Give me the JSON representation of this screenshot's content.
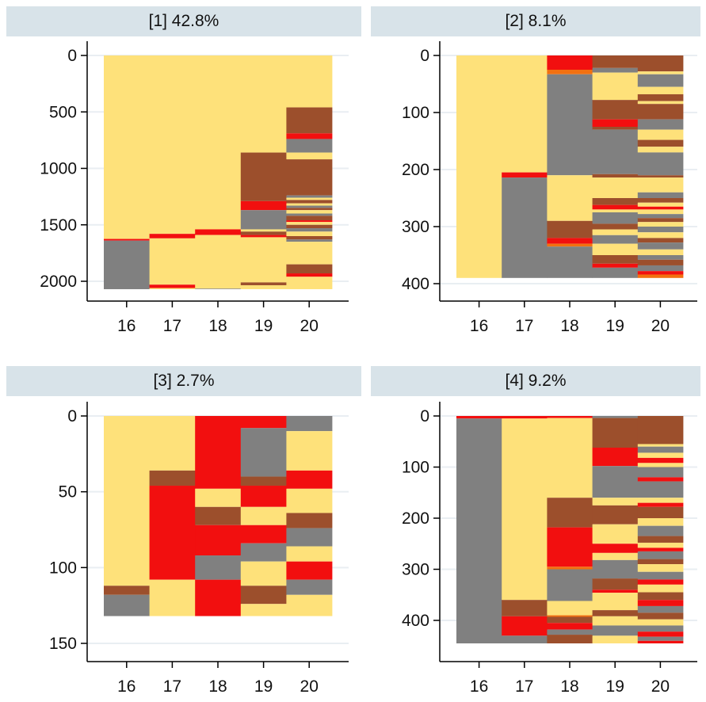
{
  "colors": {
    "yellow": "#fee17a",
    "grey": "#808080",
    "red": "#f20f0f",
    "brown": "#9c4f2c",
    "orange": "#f27010",
    "grid": "#e9eef2",
    "title_bg": "#d8e3e9"
  },
  "chart_data": [
    {
      "type": "sequence_index_plot",
      "title": "[1] 42.8%",
      "categories": [
        "16",
        "17",
        "18",
        "19",
        "20"
      ],
      "n": 2070,
      "ylim": [
        2150,
        0
      ],
      "yticks": [
        0,
        500,
        1000,
        1500,
        2000
      ],
      "grid": true,
      "columns": [
        [
          [
            "yellow",
            0,
            1625
          ],
          [
            "red",
            1625,
            1640
          ],
          [
            "grey",
            1640,
            2070
          ]
        ],
        [
          [
            "yellow",
            0,
            1580
          ],
          [
            "red",
            1580,
            1620
          ],
          [
            "yellow",
            1620,
            2030
          ],
          [
            "red",
            2030,
            2060
          ],
          [
            "yellow",
            2060,
            2070
          ]
        ],
        [
          [
            "yellow",
            0,
            1540
          ],
          [
            "red",
            1540,
            1590
          ],
          [
            "yellow",
            1590,
            2065
          ],
          [
            "grey",
            2065,
            2070
          ]
        ],
        [
          [
            "yellow",
            0,
            860
          ],
          [
            "brown",
            860,
            1290
          ],
          [
            "red",
            1290,
            1370
          ],
          [
            "grey",
            1370,
            1540
          ],
          [
            "yellow",
            1540,
            1560
          ],
          [
            "brown",
            1560,
            1590
          ],
          [
            "red",
            1590,
            1610
          ],
          [
            "yellow",
            1610,
            2010
          ],
          [
            "brown",
            2010,
            2035
          ],
          [
            "yellow",
            2035,
            2070
          ]
        ],
        [
          [
            "yellow",
            0,
            460
          ],
          [
            "brown",
            460,
            690
          ],
          [
            "red",
            690,
            740
          ],
          [
            "grey",
            740,
            860
          ],
          [
            "yellow",
            860,
            920
          ],
          [
            "brown",
            920,
            1240
          ],
          [
            "grey",
            1240,
            1260
          ],
          [
            "yellow",
            1260,
            1280
          ],
          [
            "brown",
            1280,
            1310
          ],
          [
            "yellow",
            1310,
            1330
          ],
          [
            "grey",
            1330,
            1350
          ],
          [
            "brown",
            1350,
            1370
          ],
          [
            "yellow",
            1370,
            1400
          ],
          [
            "grey",
            1400,
            1420
          ],
          [
            "brown",
            1420,
            1460
          ],
          [
            "red",
            1460,
            1475
          ],
          [
            "yellow",
            1475,
            1500
          ],
          [
            "brown",
            1500,
            1530
          ],
          [
            "grey",
            1530,
            1560
          ],
          [
            "yellow",
            1560,
            1600
          ],
          [
            "brown",
            1600,
            1630
          ],
          [
            "grey",
            1630,
            1650
          ],
          [
            "yellow",
            1650,
            1850
          ],
          [
            "brown",
            1850,
            1930
          ],
          [
            "red",
            1930,
            1960
          ],
          [
            "yellow",
            1960,
            2070
          ]
        ]
      ]
    },
    {
      "type": "sequence_index_plot",
      "title": "[2] 8.1%",
      "categories": [
        "16",
        "17",
        "18",
        "19",
        "20"
      ],
      "n": 390,
      "ylim": [
        410,
        0
      ],
      "yticks": [
        0,
        100,
        200,
        300,
        400
      ],
      "grid": true,
      "columns": [
        [
          [
            "yellow",
            0,
            390
          ]
        ],
        [
          [
            "yellow",
            0,
            205
          ],
          [
            "red",
            205,
            214
          ],
          [
            "grey",
            214,
            390
          ]
        ],
        [
          [
            "red",
            0,
            25
          ],
          [
            "orange",
            25,
            33
          ],
          [
            "grey",
            33,
            210
          ],
          [
            "yellow",
            210,
            290
          ],
          [
            "brown",
            290,
            320
          ],
          [
            "red",
            320,
            330
          ],
          [
            "orange",
            330,
            335
          ],
          [
            "grey",
            335,
            390
          ]
        ],
        [
          [
            "brown",
            0,
            22
          ],
          [
            "grey",
            22,
            30
          ],
          [
            "yellow",
            30,
            78
          ],
          [
            "brown",
            78,
            112
          ],
          [
            "red",
            112,
            125
          ],
          [
            "brown",
            125,
            130
          ],
          [
            "grey",
            130,
            208
          ],
          [
            "brown",
            208,
            214
          ],
          [
            "yellow",
            214,
            250
          ],
          [
            "brown",
            250,
            262
          ],
          [
            "red",
            262,
            270
          ],
          [
            "yellow",
            270,
            275
          ],
          [
            "grey",
            275,
            295
          ],
          [
            "brown",
            295,
            305
          ],
          [
            "yellow",
            305,
            315
          ],
          [
            "grey",
            315,
            330
          ],
          [
            "yellow",
            330,
            350
          ],
          [
            "brown",
            350,
            365
          ],
          [
            "red",
            365,
            372
          ],
          [
            "grey",
            372,
            390
          ]
        ],
        [
          [
            "brown",
            0,
            28
          ],
          [
            "yellow",
            28,
            33
          ],
          [
            "grey",
            33,
            55
          ],
          [
            "yellow",
            55,
            68
          ],
          [
            "brown",
            68,
            80
          ],
          [
            "yellow",
            80,
            85
          ],
          [
            "brown",
            85,
            112
          ],
          [
            "grey",
            112,
            130
          ],
          [
            "yellow",
            130,
            148
          ],
          [
            "brown",
            148,
            160
          ],
          [
            "yellow",
            160,
            170
          ],
          [
            "grey",
            170,
            210
          ],
          [
            "brown",
            210,
            214
          ],
          [
            "yellow",
            214,
            240
          ],
          [
            "grey",
            240,
            250
          ],
          [
            "brown",
            250,
            258
          ],
          [
            "yellow",
            258,
            265
          ],
          [
            "red",
            265,
            270
          ],
          [
            "yellow",
            270,
            278
          ],
          [
            "grey",
            278,
            285
          ],
          [
            "brown",
            285,
            292
          ],
          [
            "yellow",
            292,
            300
          ],
          [
            "grey",
            300,
            310
          ],
          [
            "yellow",
            310,
            320
          ],
          [
            "brown",
            320,
            328
          ],
          [
            "grey",
            328,
            340
          ],
          [
            "yellow",
            340,
            350
          ],
          [
            "grey",
            350,
            358
          ],
          [
            "brown",
            358,
            368
          ],
          [
            "grey",
            368,
            378
          ],
          [
            "red",
            378,
            384
          ],
          [
            "orange",
            384,
            390
          ]
        ]
      ]
    },
    {
      "type": "sequence_index_plot",
      "title": "[3] 2.7%",
      "categories": [
        "16",
        "17",
        "18",
        "19",
        "20"
      ],
      "n": 132,
      "ylim": [
        155,
        0
      ],
      "yticks": [
        0,
        50,
        100,
        150
      ],
      "grid": true,
      "columns": [
        [
          [
            "yellow",
            0,
            112
          ],
          [
            "brown",
            112,
            118
          ],
          [
            "grey",
            118,
            132
          ]
        ],
        [
          [
            "yellow",
            0,
            36
          ],
          [
            "brown",
            36,
            46
          ],
          [
            "red",
            46,
            108
          ],
          [
            "yellow",
            108,
            132
          ]
        ],
        [
          [
            "red",
            0,
            48
          ],
          [
            "yellow",
            48,
            60
          ],
          [
            "brown",
            60,
            72
          ],
          [
            "red",
            72,
            92
          ],
          [
            "grey",
            92,
            108
          ],
          [
            "red",
            108,
            132
          ]
        ],
        [
          [
            "red",
            0,
            8
          ],
          [
            "grey",
            8,
            40
          ],
          [
            "brown",
            40,
            46
          ],
          [
            "red",
            46,
            60
          ],
          [
            "yellow",
            60,
            72
          ],
          [
            "red",
            72,
            84
          ],
          [
            "grey",
            84,
            96
          ],
          [
            "yellow",
            96,
            112
          ],
          [
            "brown",
            112,
            124
          ],
          [
            "yellow",
            124,
            132
          ]
        ],
        [
          [
            "grey",
            0,
            10
          ],
          [
            "yellow",
            10,
            36
          ],
          [
            "red",
            36,
            48
          ],
          [
            "yellow",
            48,
            64
          ],
          [
            "brown",
            64,
            74
          ],
          [
            "grey",
            74,
            86
          ],
          [
            "yellow",
            86,
            96
          ],
          [
            "red",
            96,
            108
          ],
          [
            "grey",
            108,
            118
          ],
          [
            "yellow",
            118,
            132
          ]
        ]
      ]
    },
    {
      "type": "sequence_index_plot",
      "title": "[4] 9.2%",
      "categories": [
        "16",
        "17",
        "18",
        "19",
        "20"
      ],
      "n": 445,
      "ylim": [
        465,
        0
      ],
      "yticks": [
        0,
        100,
        200,
        300,
        400
      ],
      "grid": true,
      "columns": [
        [
          [
            "red",
            0,
            5
          ],
          [
            "grey",
            5,
            445
          ]
        ],
        [
          [
            "red",
            0,
            5
          ],
          [
            "yellow",
            5,
            360
          ],
          [
            "brown",
            360,
            392
          ],
          [
            "red",
            392,
            430
          ],
          [
            "grey",
            430,
            445
          ]
        ],
        [
          [
            "red",
            0,
            4
          ],
          [
            "yellow",
            4,
            160
          ],
          [
            "brown",
            160,
            218
          ],
          [
            "red",
            218,
            295
          ],
          [
            "orange",
            295,
            300
          ],
          [
            "grey",
            300,
            362
          ],
          [
            "yellow",
            362,
            390
          ],
          [
            "orange",
            390,
            393
          ],
          [
            "brown",
            393,
            405
          ],
          [
            "red",
            405,
            418
          ],
          [
            "grey",
            418,
            428
          ],
          [
            "brown",
            428,
            445
          ]
        ],
        [
          [
            "grey",
            0,
            4
          ],
          [
            "brown",
            4,
            62
          ],
          [
            "red",
            62,
            98
          ],
          [
            "grey",
            98,
            160
          ],
          [
            "yellow",
            160,
            175
          ],
          [
            "brown",
            175,
            212
          ],
          [
            "yellow",
            212,
            250
          ],
          [
            "red",
            250,
            268
          ],
          [
            "yellow",
            268,
            282
          ],
          [
            "grey",
            282,
            318
          ],
          [
            "brown",
            318,
            340
          ],
          [
            "red",
            340,
            346
          ],
          [
            "yellow",
            346,
            380
          ],
          [
            "brown",
            380,
            392
          ],
          [
            "yellow",
            392,
            410
          ],
          [
            "grey",
            410,
            430
          ],
          [
            "yellow",
            430,
            445
          ]
        ],
        [
          [
            "brown",
            0,
            55
          ],
          [
            "yellow",
            55,
            60
          ],
          [
            "grey",
            60,
            72
          ],
          [
            "yellow",
            72,
            82
          ],
          [
            "red",
            82,
            92
          ],
          [
            "yellow",
            92,
            100
          ],
          [
            "grey",
            100,
            120
          ],
          [
            "red",
            120,
            128
          ],
          [
            "grey",
            128,
            160
          ],
          [
            "yellow",
            160,
            170
          ],
          [
            "red",
            170,
            178
          ],
          [
            "brown",
            178,
            200
          ],
          [
            "yellow",
            200,
            215
          ],
          [
            "grey",
            215,
            235
          ],
          [
            "brown",
            235,
            248
          ],
          [
            "yellow",
            248,
            258
          ],
          [
            "red",
            258,
            265
          ],
          [
            "grey",
            265,
            280
          ],
          [
            "brown",
            280,
            290
          ],
          [
            "yellow",
            290,
            305
          ],
          [
            "grey",
            305,
            320
          ],
          [
            "red",
            320,
            330
          ],
          [
            "yellow",
            330,
            345
          ],
          [
            "brown",
            345,
            360
          ],
          [
            "red",
            360,
            372
          ],
          [
            "grey",
            372,
            385
          ],
          [
            "brown",
            385,
            398
          ],
          [
            "yellow",
            398,
            410
          ],
          [
            "grey",
            410,
            422
          ],
          [
            "red",
            422,
            432
          ],
          [
            "grey",
            432,
            440
          ],
          [
            "red",
            440,
            445
          ]
        ]
      ]
    }
  ]
}
